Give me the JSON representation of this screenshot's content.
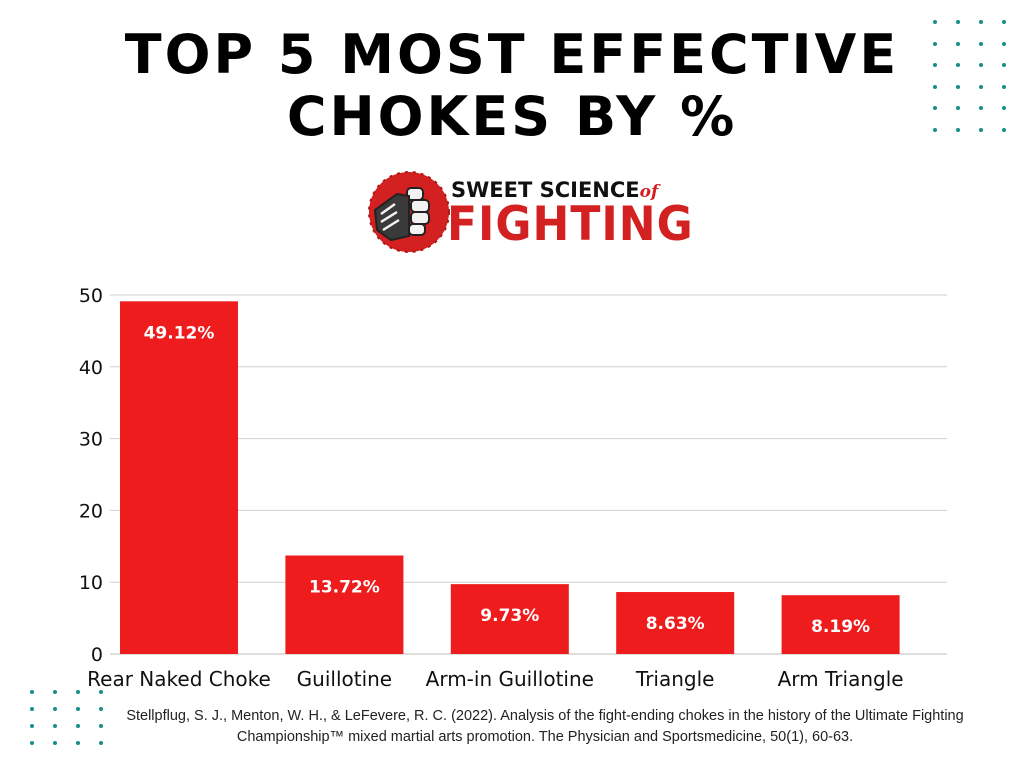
{
  "chart_data": {
    "type": "bar",
    "title": "TOP 5 MOST EFFECTIVE CHOKES BY %",
    "categories": [
      "Rear Naked Choke",
      "Guillotine",
      "Arm-in Guillotine",
      "Triangle",
      "Arm Triangle"
    ],
    "values": [
      49.12,
      13.72,
      9.73,
      8.63,
      8.19
    ],
    "data_labels": [
      "49.12%",
      "13.72%",
      "9.73%",
      "8.63%",
      "8.19%"
    ],
    "yticks": [
      "0",
      "10",
      "20",
      "30",
      "40",
      "50"
    ],
    "ylim": [
      0,
      50
    ],
    "grid": true,
    "bar_color": "#ee1c1c",
    "xlabel": "",
    "ylabel": ""
  },
  "logo": {
    "line1": "SWEET SCIENCE",
    "line1_of": "of",
    "line2": "FIGHTING",
    "accent_color": "#d32020"
  },
  "citation": "Stellpflug, S. J., Menton, W. H., & LeFevere, R. C. (2022). Analysis of the fight-ending chokes in the history of the Ultimate Fighting Championship™ mixed martial arts promotion. The Physician and Sportsmedicine, 50(1), 60-63.",
  "decor": {
    "dot_color": "#1a8e8a"
  }
}
